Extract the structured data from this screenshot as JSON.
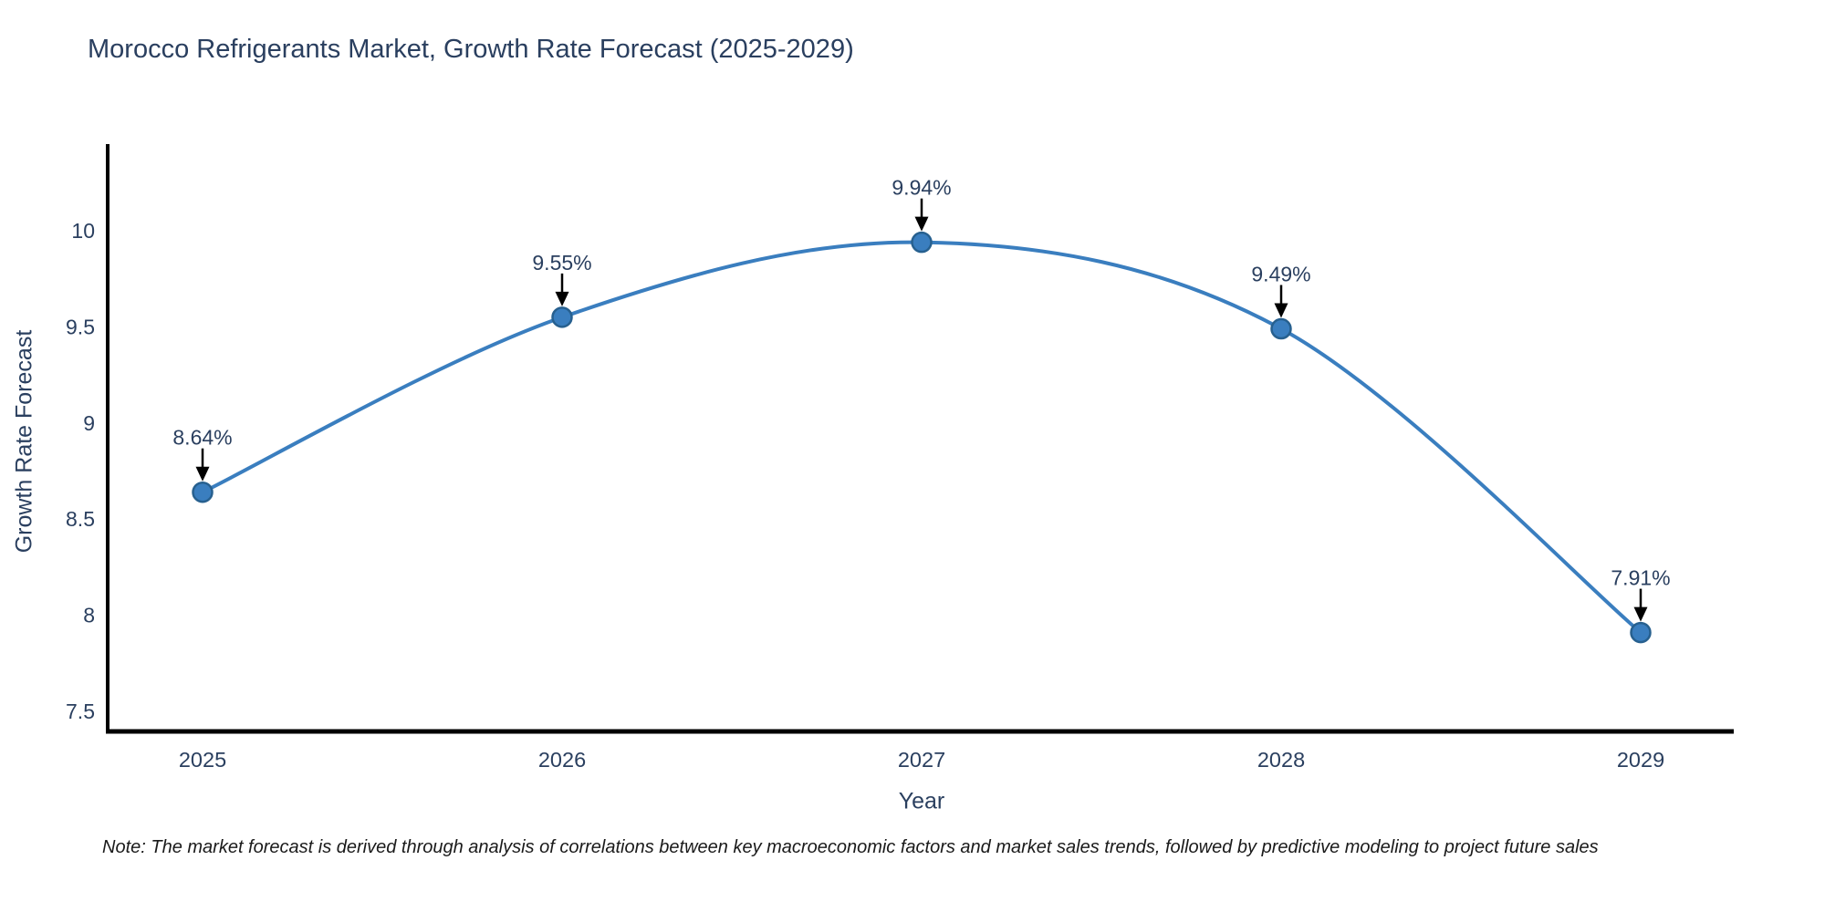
{
  "chart": {
    "title": "Morocco Refrigerants Market, Growth Rate Forecast (2025-2029)",
    "xlabel": "Year",
    "ylabel": "Growth Rate Forecast"
  },
  "note": "Note: The market forecast is derived through analysis of correlations between key macroeconomic factors and market sales trends, followed by predictive modeling to project future sales",
  "chart_data": {
    "type": "line",
    "line_shape": "spline",
    "title": "Morocco Refrigerants Market, Growth Rate Forecast (2025-2029)",
    "xlabel": "Year",
    "ylabel": "Growth Rate Forecast",
    "x": [
      2025,
      2026,
      2027,
      2028,
      2029
    ],
    "values": [
      8.64,
      9.55,
      9.94,
      9.49,
      7.91
    ],
    "point_labels": [
      "8.64%",
      "9.55%",
      "9.94%",
      "9.49%",
      "7.91%"
    ],
    "xticks": [
      "2025",
      "2026",
      "2027",
      "2028",
      "2029"
    ],
    "yticks": [
      "7.5",
      "8",
      "8.5",
      "9",
      "9.5",
      "10"
    ],
    "ylim": [
      7.4,
      10.45
    ],
    "grid": false,
    "legend": false,
    "annotations_have_arrows": true,
    "colors": {
      "line": "#3a7ebf",
      "marker_fill": "#3a7ebf",
      "marker_border": "#27608f",
      "arrow": "#000000",
      "axis_line": "#000000",
      "text": "#2a3f5f"
    }
  }
}
